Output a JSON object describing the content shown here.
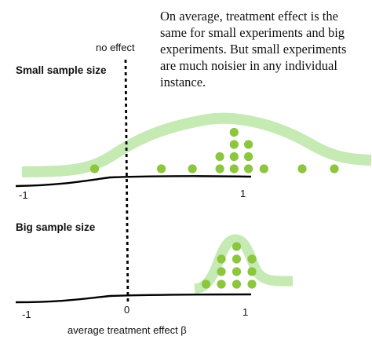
{
  "annotation_lines": [
    "On average, treatment effect is the",
    "same for small experiments and big",
    "experiments. But small experiments",
    "are much noisier in any individual",
    "instance."
  ],
  "no_effect_label": "no effect",
  "panels": {
    "small": {
      "title": "Small sample size",
      "tick_minus": "-1",
      "tick_one": "1"
    },
    "big": {
      "title": "Big sample size",
      "tick_minus": "-1",
      "tick_zero": "0",
      "tick_one": "1"
    }
  },
  "xlabel": "average treatment effect β",
  "colors": {
    "dot": "#8cc63f",
    "band": "#c5eab3",
    "axis": "#000000",
    "text": "#111111"
  },
  "small_dots": [
    {
      "x": -0.26,
      "row": 0
    },
    {
      "x": 0.3,
      "row": 0
    },
    {
      "x": 0.56,
      "row": 0
    },
    {
      "x": 0.79,
      "row": 0
    },
    {
      "x": 0.79,
      "row": 1
    },
    {
      "x": 0.91,
      "row": 0
    },
    {
      "x": 0.91,
      "row": 1
    },
    {
      "x": 0.91,
      "row": 2
    },
    {
      "x": 0.91,
      "row": 3
    },
    {
      "x": 1.03,
      "row": 0
    },
    {
      "x": 1.03,
      "row": 1
    },
    {
      "x": 1.03,
      "row": 2
    },
    {
      "x": 1.16,
      "row": 0
    },
    {
      "x": 1.48,
      "row": 0
    },
    {
      "x": 1.75,
      "row": 0
    }
  ],
  "big_dots": [
    {
      "x": 0.67,
      "row": 0
    },
    {
      "x": 0.8,
      "row": 0
    },
    {
      "x": 0.8,
      "row": 1
    },
    {
      "x": 0.8,
      "row": 2
    },
    {
      "x": 0.93,
      "row": 0
    },
    {
      "x": 0.93,
      "row": 1
    },
    {
      "x": 0.93,
      "row": 2
    },
    {
      "x": 0.93,
      "row": 3
    },
    {
      "x": 1.06,
      "row": 0
    },
    {
      "x": 1.06,
      "row": 1
    },
    {
      "x": 1.06,
      "row": 2
    }
  ]
}
